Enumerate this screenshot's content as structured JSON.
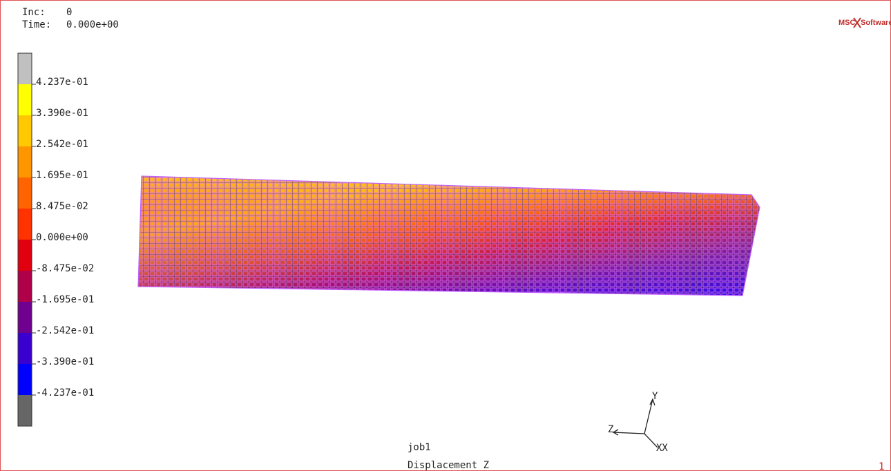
{
  "header": {
    "inc_label": "Inc:",
    "inc_value": "0",
    "time_label": "Time:",
    "time_value": "0.000e+00"
  },
  "logo": {
    "left": "MSC",
    "right": "Software"
  },
  "legend": {
    "labels": [
      "4.237e-01",
      "3.390e-01",
      "2.542e-01",
      "1.695e-01",
      "8.475e-02",
      "0.000e+00",
      "-8.475e-02",
      "-1.695e-01",
      "-2.542e-01",
      "-3.390e-01",
      "-4.237e-01"
    ]
  },
  "footer": {
    "job": "job1",
    "result": "Displacement Z",
    "page": "1"
  },
  "triad": {
    "y": "Y",
    "z": "Z",
    "x": "XX"
  }
}
